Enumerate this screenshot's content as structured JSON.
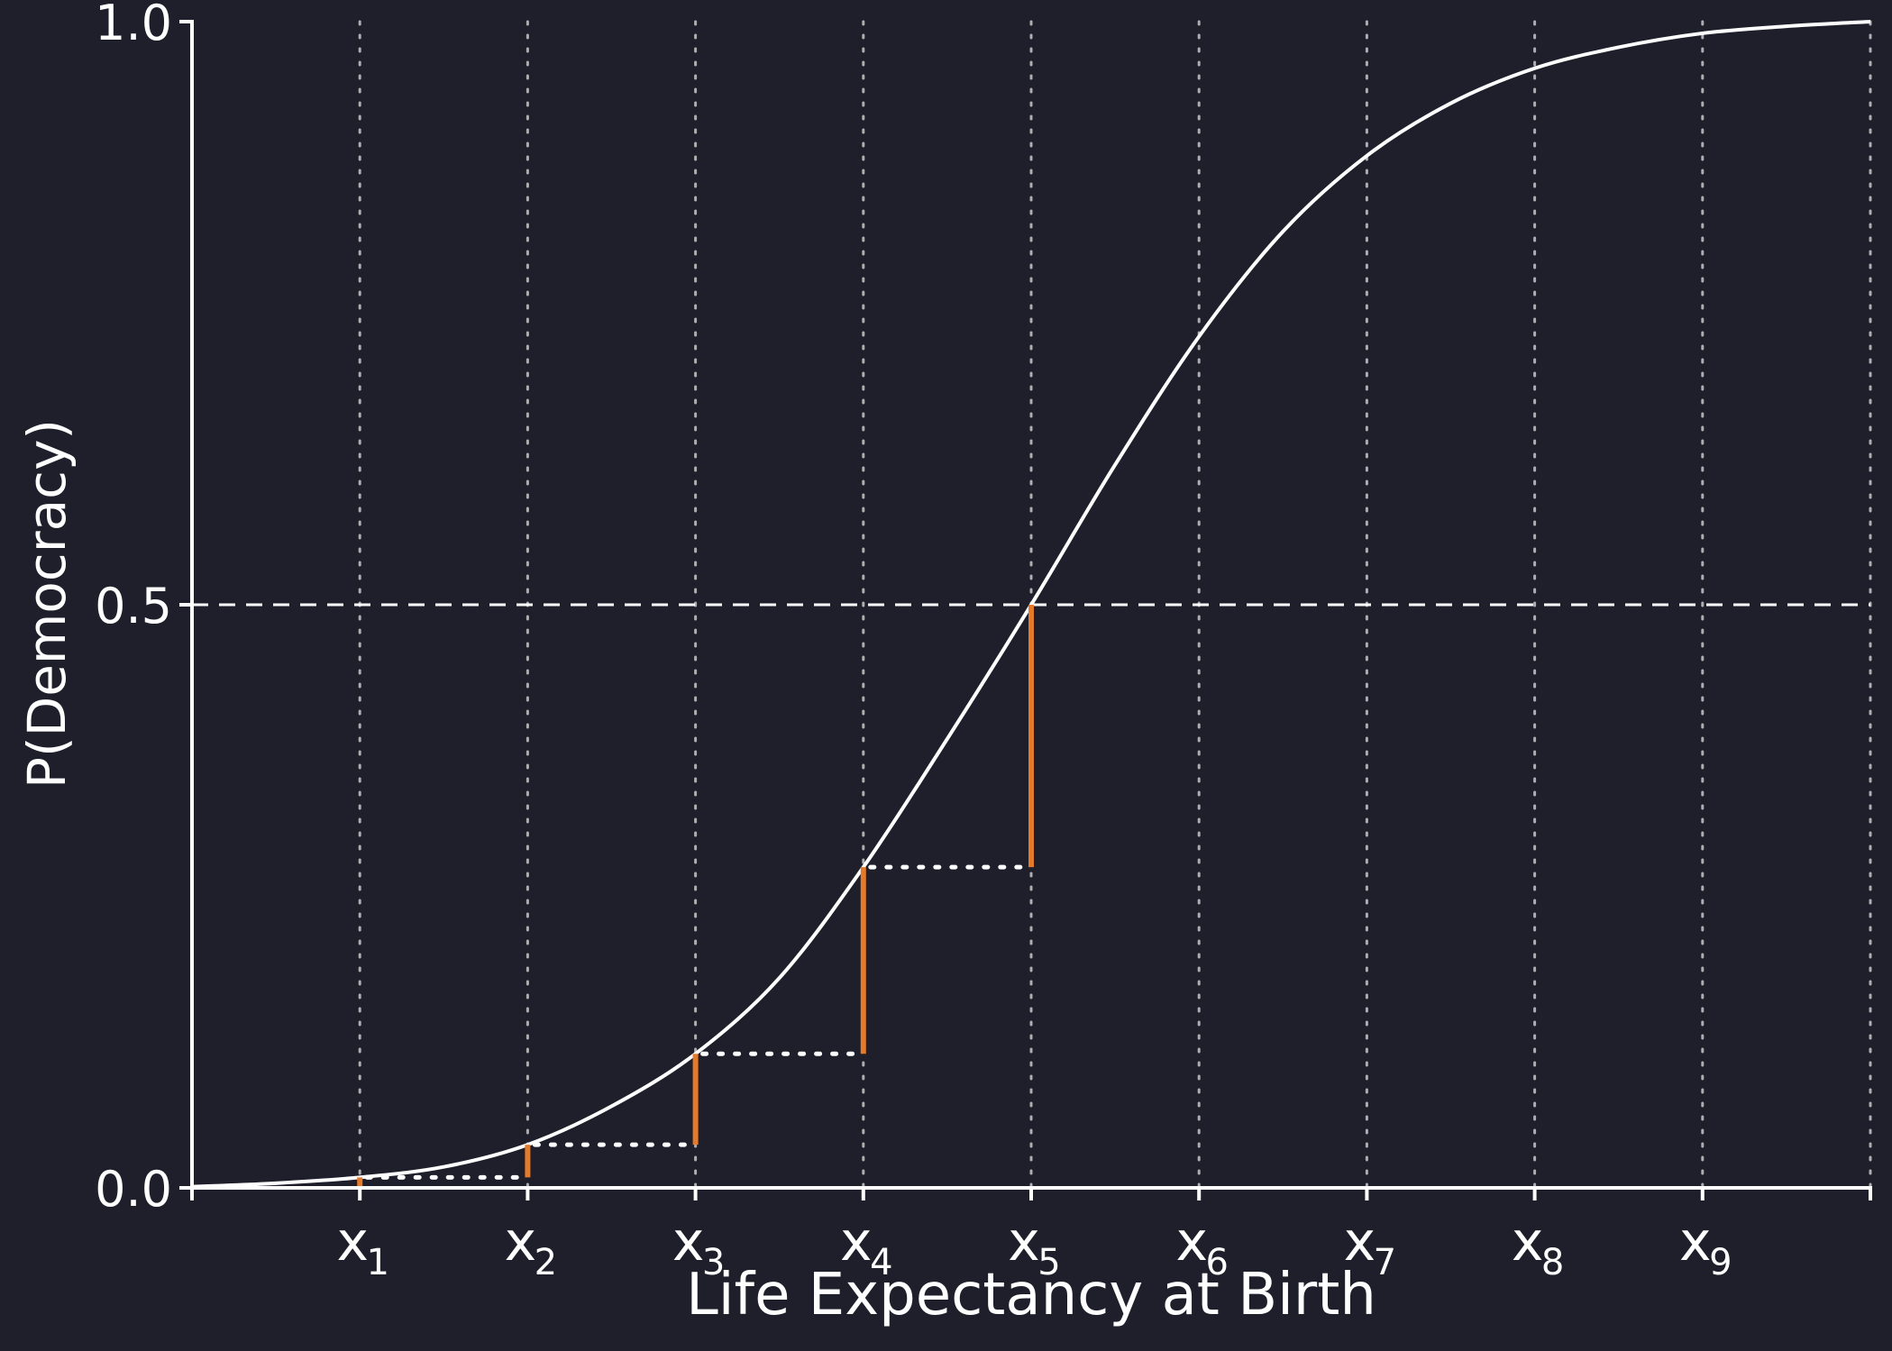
{
  "colors": {
    "background": "#1e1f2b",
    "axis": "#ffffff",
    "curve": "#ffffff",
    "step": "#e57a2a",
    "grid": "#c8c8c8"
  },
  "chart_data": {
    "type": "line",
    "xlabel": "Life Expectancy at Birth",
    "ylabel": "P(Democracy)",
    "ylim": [
      0,
      1
    ],
    "xlim": [
      0,
      10
    ],
    "yticks": [
      {
        "value": 0.0,
        "label": "0.0"
      },
      {
        "value": 0.5,
        "label": "0.5"
      },
      {
        "value": 1.0,
        "label": "1.0"
      }
    ],
    "xticks": [
      {
        "value": 1,
        "main": "x",
        "sub": "1"
      },
      {
        "value": 2,
        "main": "x",
        "sub": "2"
      },
      {
        "value": 3,
        "main": "x",
        "sub": "3"
      },
      {
        "value": 4,
        "main": "x",
        "sub": "4"
      },
      {
        "value": 5,
        "main": "x",
        "sub": "5"
      },
      {
        "value": 6,
        "main": "x",
        "sub": "6"
      },
      {
        "value": 7,
        "main": "x",
        "sub": "7"
      },
      {
        "value": 8,
        "main": "x",
        "sub": "8"
      },
      {
        "value": 9,
        "main": "x",
        "sub": "9"
      }
    ],
    "vertical_gridlines_at": [
      1,
      2,
      3,
      4,
      5,
      6,
      7,
      8,
      9
    ],
    "horizontal_reference_line": 0.5,
    "grid": false,
    "legend": "none",
    "series": [
      {
        "style": "solid-white",
        "x": [
          0,
          0.5,
          1,
          1.5,
          2,
          2.5,
          3,
          3.5,
          4,
          4.5,
          5,
          5.5,
          6,
          6.5,
          7,
          7.5,
          8,
          8.5,
          9,
          9.5,
          10
        ],
        "y": [
          0.001,
          0.004,
          0.009,
          0.018,
          0.037,
          0.07,
          0.115,
          0.18,
          0.275,
          0.385,
          0.5,
          0.62,
          0.73,
          0.82,
          0.885,
          0.93,
          0.96,
          0.978,
          0.99,
          0.996,
          1.0
        ]
      }
    ],
    "steps": [
      {
        "x_from": 1,
        "x_to": 2,
        "y_from": 0.009,
        "y_to": 0.037
      },
      {
        "x_from": 2,
        "x_to": 3,
        "y_from": 0.037,
        "y_to": 0.115
      },
      {
        "x_from": 3,
        "x_to": 4,
        "y_from": 0.115,
        "y_to": 0.275
      },
      {
        "x_from": 4,
        "x_to": 5,
        "y_from": 0.275,
        "y_to": 0.5
      }
    ]
  }
}
